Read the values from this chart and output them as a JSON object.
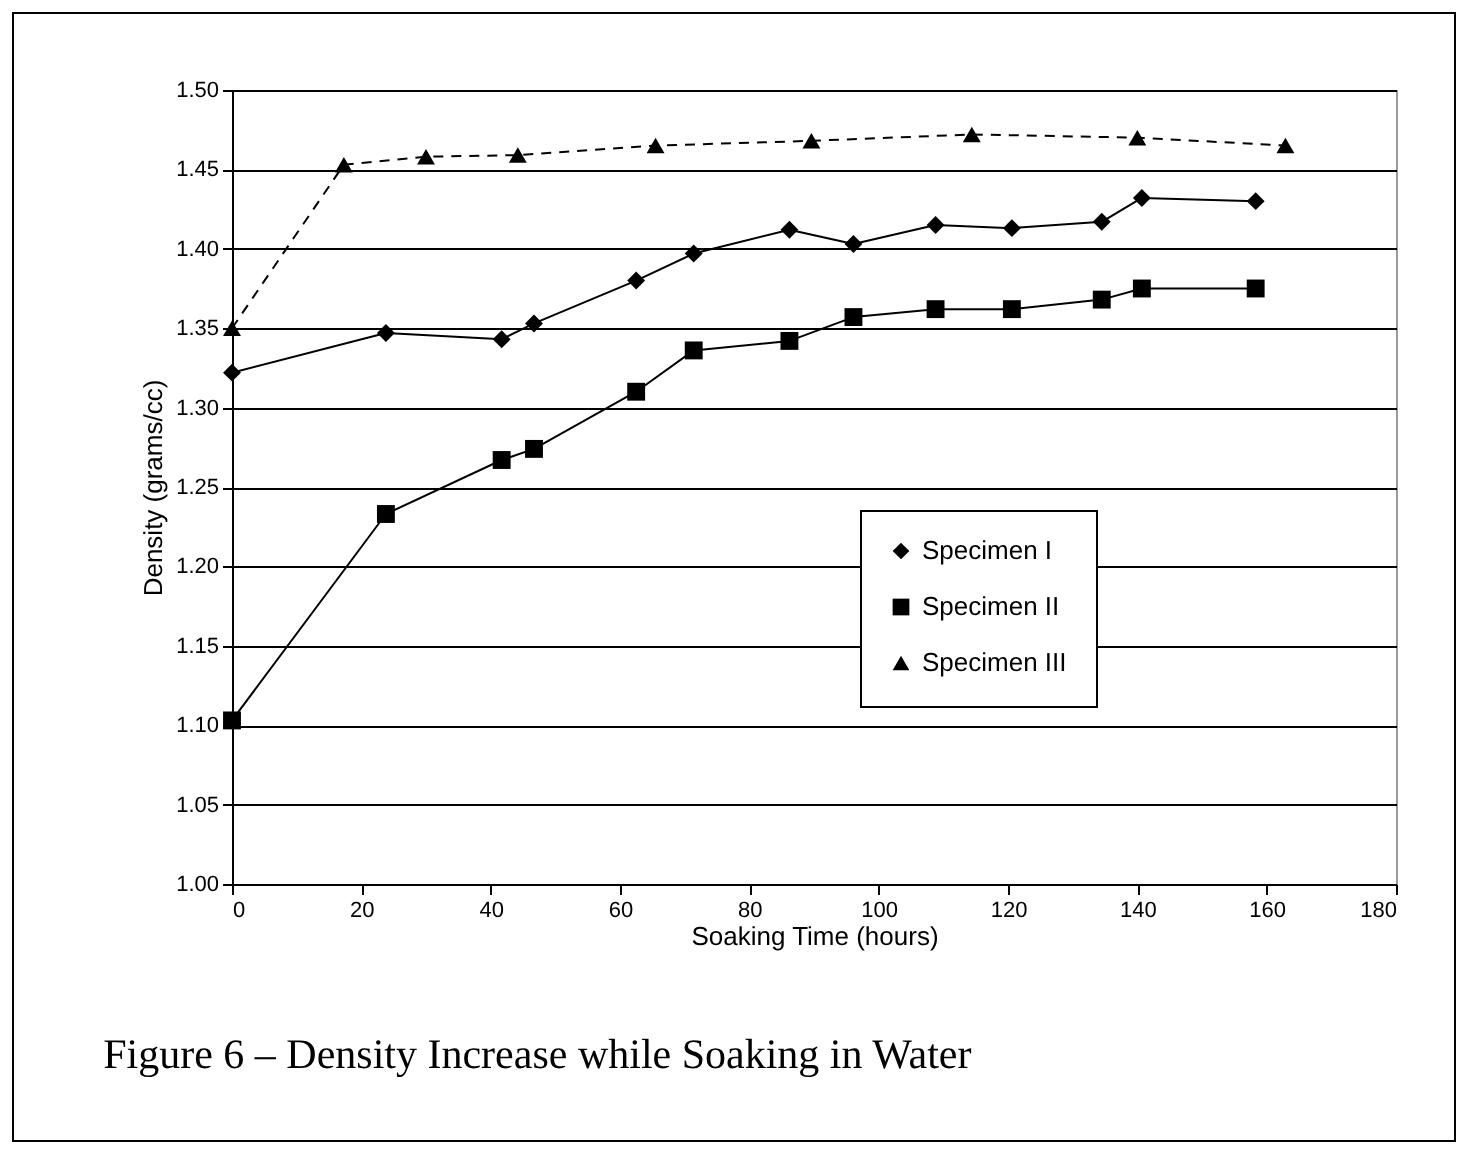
{
  "chart_data": {
    "type": "line",
    "title": "Figure 6 – Density Increase while Soaking in Water",
    "xlabel": "Soaking Time (hours)",
    "ylabel": "Density (grams/cc)",
    "xlim": [
      0,
      180
    ],
    "xticks": [
      0,
      20,
      40,
      60,
      80,
      100,
      120,
      140,
      160,
      180
    ],
    "ylim": [
      1.0,
      1.5
    ],
    "yticks": [
      {
        "value": 1.0,
        "label": "1.00"
      },
      {
        "value": 1.05,
        "label": "1.05"
      },
      {
        "value": 1.1,
        "label": "1.10"
      },
      {
        "value": 1.15,
        "label": "1.15"
      },
      {
        "value": 1.2,
        "label": "1.20"
      },
      {
        "value": 1.25,
        "label": "1.25"
      },
      {
        "value": 1.3,
        "label": "1.30"
      },
      {
        "value": 1.35,
        "label": "1.35"
      },
      {
        "value": 1.4,
        "label": "1.40"
      },
      {
        "value": 1.45,
        "label": "1.45"
      },
      {
        "value": 1.5,
        "label": "1.50"
      }
    ],
    "grid": "y",
    "legend": "right",
    "series": [
      {
        "name": "Specimen I",
        "color": "#000000",
        "marker": "diamond",
        "line_style": "solid",
        "x": [
          0,
          23.8,
          41.7,
          46.7,
          62.5,
          71.4,
          86.2,
          96.1,
          108.8,
          120.6,
          134.5,
          140.7,
          158.3
        ],
        "values": [
          1.322,
          1.347,
          1.343,
          1.353,
          1.38,
          1.397,
          1.412,
          1.403,
          1.415,
          1.413,
          1.417,
          1.432,
          1.43
        ]
      },
      {
        "name": "Specimen II",
        "color": "#000000",
        "marker": "square",
        "line_style": "solid",
        "x": [
          0,
          23.8,
          41.7,
          46.7,
          62.5,
          71.4,
          86.2,
          96.1,
          108.8,
          120.6,
          134.5,
          140.7,
          158.3
        ],
        "values": [
          1.103,
          1.233,
          1.267,
          1.274,
          1.31,
          1.336,
          1.342,
          1.357,
          1.362,
          1.362,
          1.368,
          1.375,
          1.375
        ]
      },
      {
        "name": "Specimen III",
        "color": "#000000",
        "marker": "triangle",
        "line_style": "dashed",
        "x": [
          0,
          17.3,
          30.0,
          44.2,
          65.5,
          89.6,
          114.4,
          140.0,
          162.9
        ],
        "values": [
          1.35,
          1.453,
          1.458,
          1.459,
          1.465,
          1.468,
          1.472,
          1.47,
          1.465
        ]
      }
    ]
  }
}
